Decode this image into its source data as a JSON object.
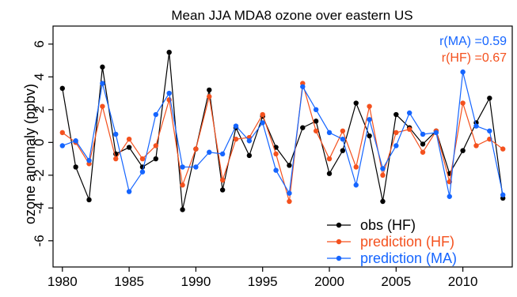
{
  "chart_data": {
    "type": "line",
    "title": "Mean JJA MDA8 ozone over eastern US",
    "xlabel": "",
    "ylabel": "ozone anomaly (ppbv)",
    "xlim": [
      1979.3,
      1913.7
    ],
    "ylim": [
      -7.6,
      7.1
    ],
    "x_ticks": [
      1980,
      1985,
      1990,
      1995,
      2000,
      2005,
      2010
    ],
    "y_ticks": [
      -6,
      -4,
      -2,
      0,
      2,
      4,
      6
    ],
    "grid": false,
    "legend_position": "bottom-right",
    "x": [
      1980,
      1981,
      1982,
      1983,
      1984,
      1985,
      1986,
      1987,
      1988,
      1989,
      1990,
      1991,
      1992,
      1993,
      1994,
      1995,
      1996,
      1997,
      1998,
      1999,
      2000,
      2001,
      2002,
      2003,
      2004,
      2005,
      2006,
      2007,
      2008,
      2009,
      2010,
      2011,
      2012,
      2013
    ],
    "series": [
      {
        "name": "obs (HF)",
        "color": "#000000",
        "values": [
          3.3,
          -1.5,
          -3.5,
          4.6,
          -0.7,
          -0.3,
          -1.5,
          -1.0,
          5.5,
          -4.1,
          -0.4,
          3.2,
          -2.9,
          0.9,
          -0.8,
          1.6,
          -0.3,
          -1.4,
          0.9,
          1.3,
          -1.9,
          -0.5,
          2.4,
          0.4,
          -3.6,
          1.7,
          0.9,
          -0.1,
          0.7,
          -1.9,
          -0.5,
          1.2,
          2.7,
          -3.4
        ]
      },
      {
        "name": "prediction (HF)",
        "color": "#f4511e",
        "values": [
          0.6,
          0.0,
          -1.3,
          2.2,
          -1.0,
          0.2,
          -1.0,
          -0.2,
          2.6,
          -2.6,
          -0.4,
          2.8,
          -2.3,
          0.2,
          0.3,
          1.7,
          -0.7,
          -3.6,
          3.6,
          0.7,
          -1.0,
          0.7,
          -1.5,
          2.2,
          -2.0,
          0.6,
          0.8,
          -0.6,
          0.7,
          -2.4,
          2.4,
          -0.2,
          0.2,
          -0.4
        ]
      },
      {
        "name": "prediction (MA)",
        "color": "#1565ff",
        "values": [
          -0.2,
          0.1,
          -1.1,
          3.6,
          0.5,
          -3.0,
          -1.8,
          1.7,
          3.0,
          -1.5,
          -1.5,
          -0.6,
          -0.7,
          1.0,
          0.1,
          1.2,
          -1.7,
          -3.1,
          3.4,
          2.0,
          0.6,
          0.2,
          -2.6,
          1.4,
          -1.6,
          -0.2,
          1.8,
          0.5,
          0.6,
          -3.3,
          4.3,
          1.0,
          0.7,
          -3.2
        ]
      }
    ],
    "annotations": [
      {
        "text": "r(MA) =0.59",
        "color": "#1565ff"
      },
      {
        "text": "r(HF) =0.67",
        "color": "#f4511e"
      }
    ]
  }
}
